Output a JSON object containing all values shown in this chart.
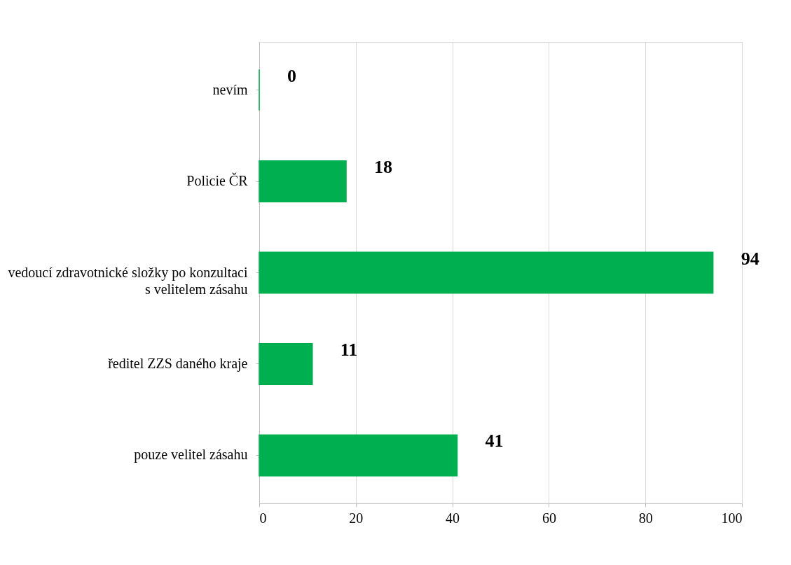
{
  "chart_data": {
    "type": "bar",
    "orientation": "horizontal",
    "categories": [
      "nevím",
      "Policie ČR",
      "vedoucí zdravotnické složky po konzultaci\ns velitelem zásahu",
      "ředitel ZZS daného kraje",
      "pouze velitel zásahu"
    ],
    "values": [
      0,
      18,
      94,
      11,
      41
    ],
    "colors": [
      "#00b050",
      "#00b050",
      "#00b050",
      "#00b050",
      "#00b050"
    ],
    "xlim": [
      0,
      100
    ],
    "xticks": [
      0,
      20,
      40,
      60,
      80,
      100
    ],
    "grid": "x",
    "data_labels": true
  }
}
